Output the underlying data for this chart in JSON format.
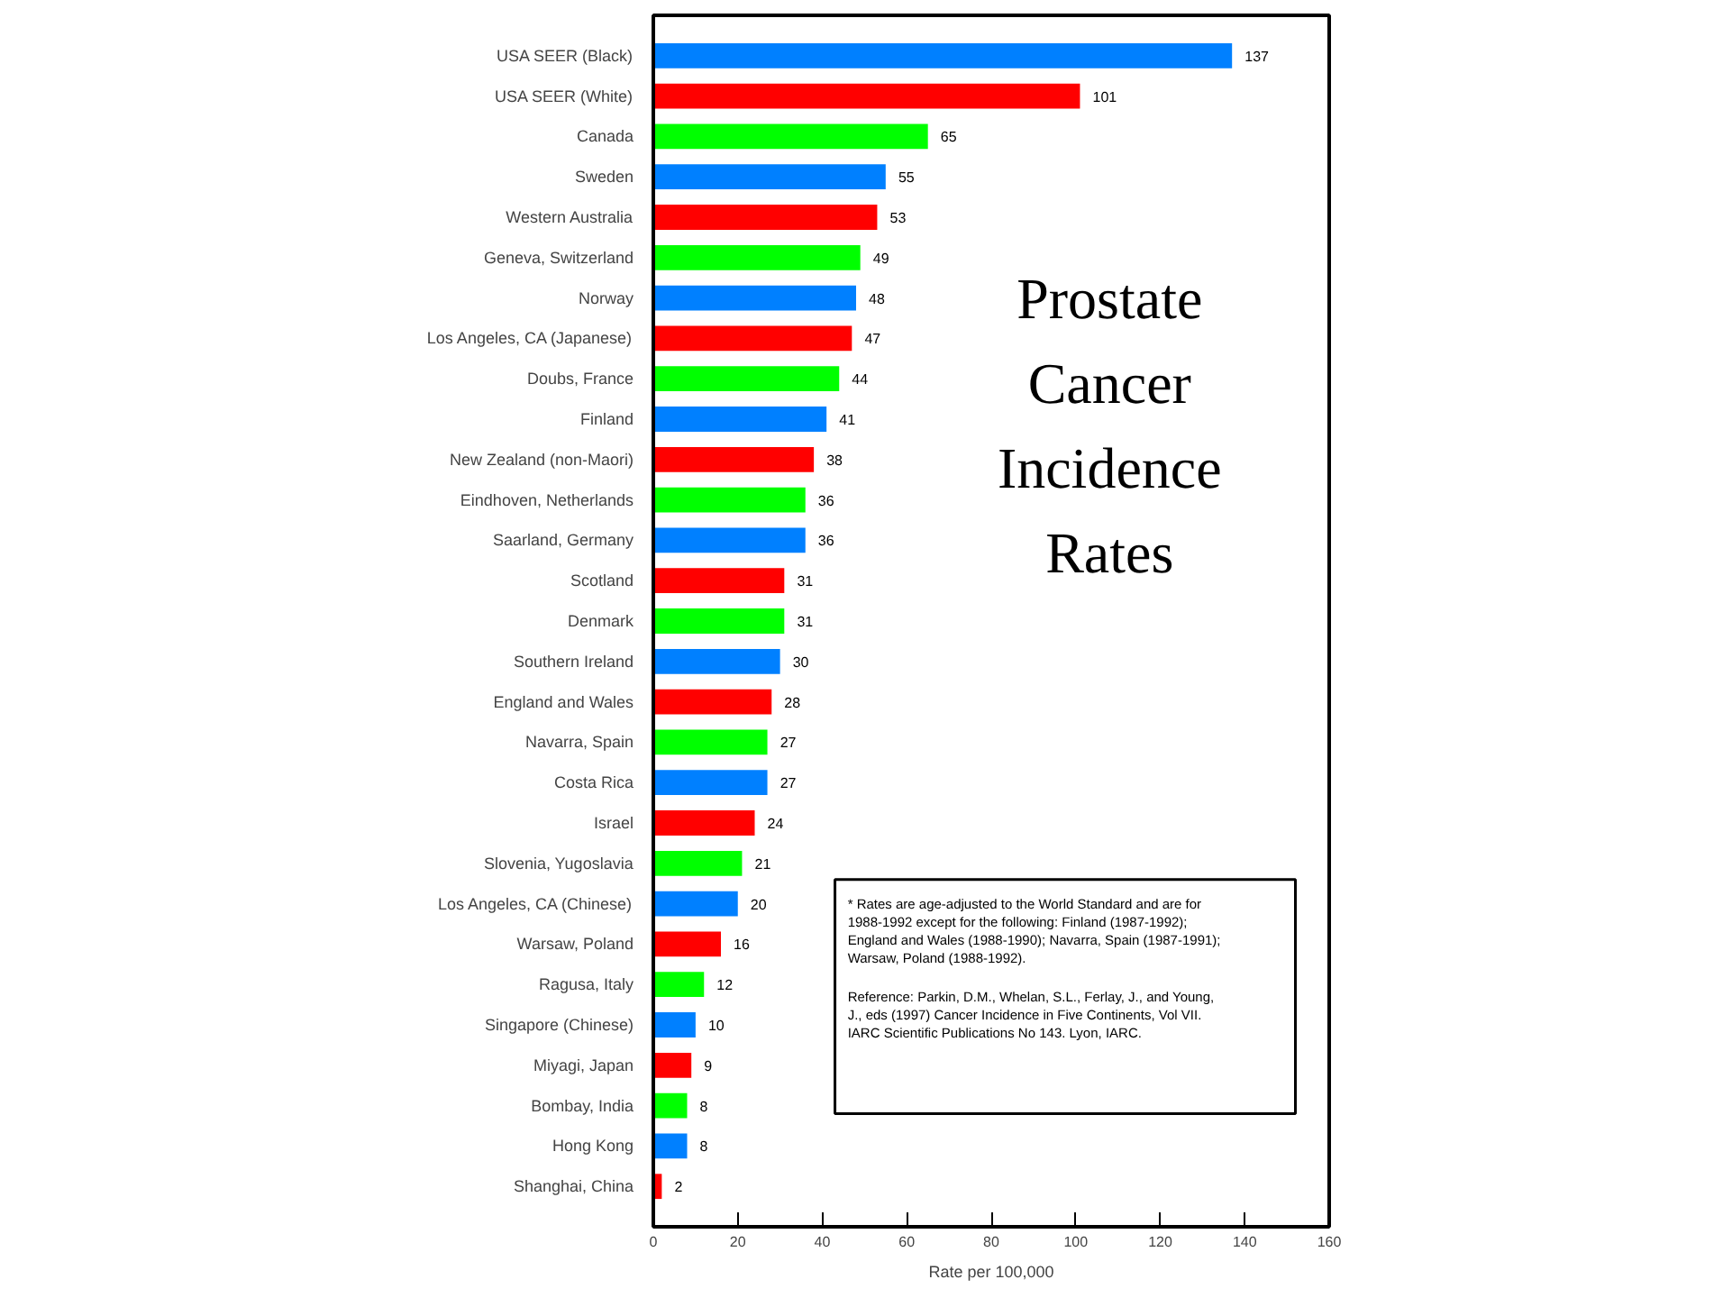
{
  "chart_data": {
    "type": "bar",
    "orientation": "horizontal",
    "title": "Prostate Cancer Incidence Rates",
    "xlabel": "Rate per 100,000",
    "categories": [
      "USA SEER (Black)",
      "USA SEER (White)",
      "Canada",
      "Sweden",
      "Western Australia",
      "Geneva, Switzerland",
      "Norway",
      "Los Angeles, CA (Japanese)",
      "Doubs, France",
      "Finland",
      "New Zealand (non-Maori)",
      "Eindhoven, Netherlands",
      "Saarland, Germany",
      "Scotland",
      "Denmark",
      "Southern Ireland",
      "England and Wales",
      "Navarra, Spain",
      "Costa Rica",
      "Israel",
      "Slovenia, Yugoslavia",
      "Los Angeles, CA (Chinese)",
      "Warsaw, Poland",
      "Ragusa, Italy",
      "Singapore (Chinese)",
      "Miyagi, Japan",
      "Bombay, India",
      "Hong Kong",
      "Shanghai, China"
    ],
    "values": [
      137,
      101,
      65,
      55,
      53,
      49,
      48,
      47,
      44,
      41,
      38,
      36,
      36,
      31,
      31,
      30,
      28,
      27,
      27,
      24,
      21,
      20,
      16,
      12,
      10,
      9,
      8,
      8,
      2
    ],
    "colors": [
      "#0080ff",
      "#ff0000",
      "#00ff00",
      "#0080ff",
      "#ff0000",
      "#00ff00",
      "#0080ff",
      "#ff0000",
      "#00ff00",
      "#0080ff",
      "#ff0000",
      "#00ff00",
      "#0080ff",
      "#ff0000",
      "#00ff00",
      "#0080ff",
      "#ff0000",
      "#00ff00",
      "#0080ff",
      "#ff0000",
      "#00ff00",
      "#0080ff",
      "#ff0000",
      "#00ff00",
      "#0080ff",
      "#ff0000",
      "#00ff00",
      "#0080ff",
      "#ff0000"
    ],
    "xlim": [
      0,
      160
    ],
    "xticks": [
      0,
      20,
      40,
      60,
      80,
      100,
      120,
      140,
      160
    ],
    "data_labels": true,
    "annotations": [
      "* Rates are age-adjusted to the World Standard and are for 1988-1992 except for the following: Finland (1987-1992); England and Wales (1988-1990); Navarra, Spain (1987-1991); Warsaw, Poland (1988-1992).",
      "Reference: Parkin, D.M., Whelan, S.L., Ferlay, J., and Young, J., eds (1997) Cancer Incidence in Five Continents, Vol VII. IARC Scientific Publications No 143. Lyon, IARC."
    ]
  }
}
